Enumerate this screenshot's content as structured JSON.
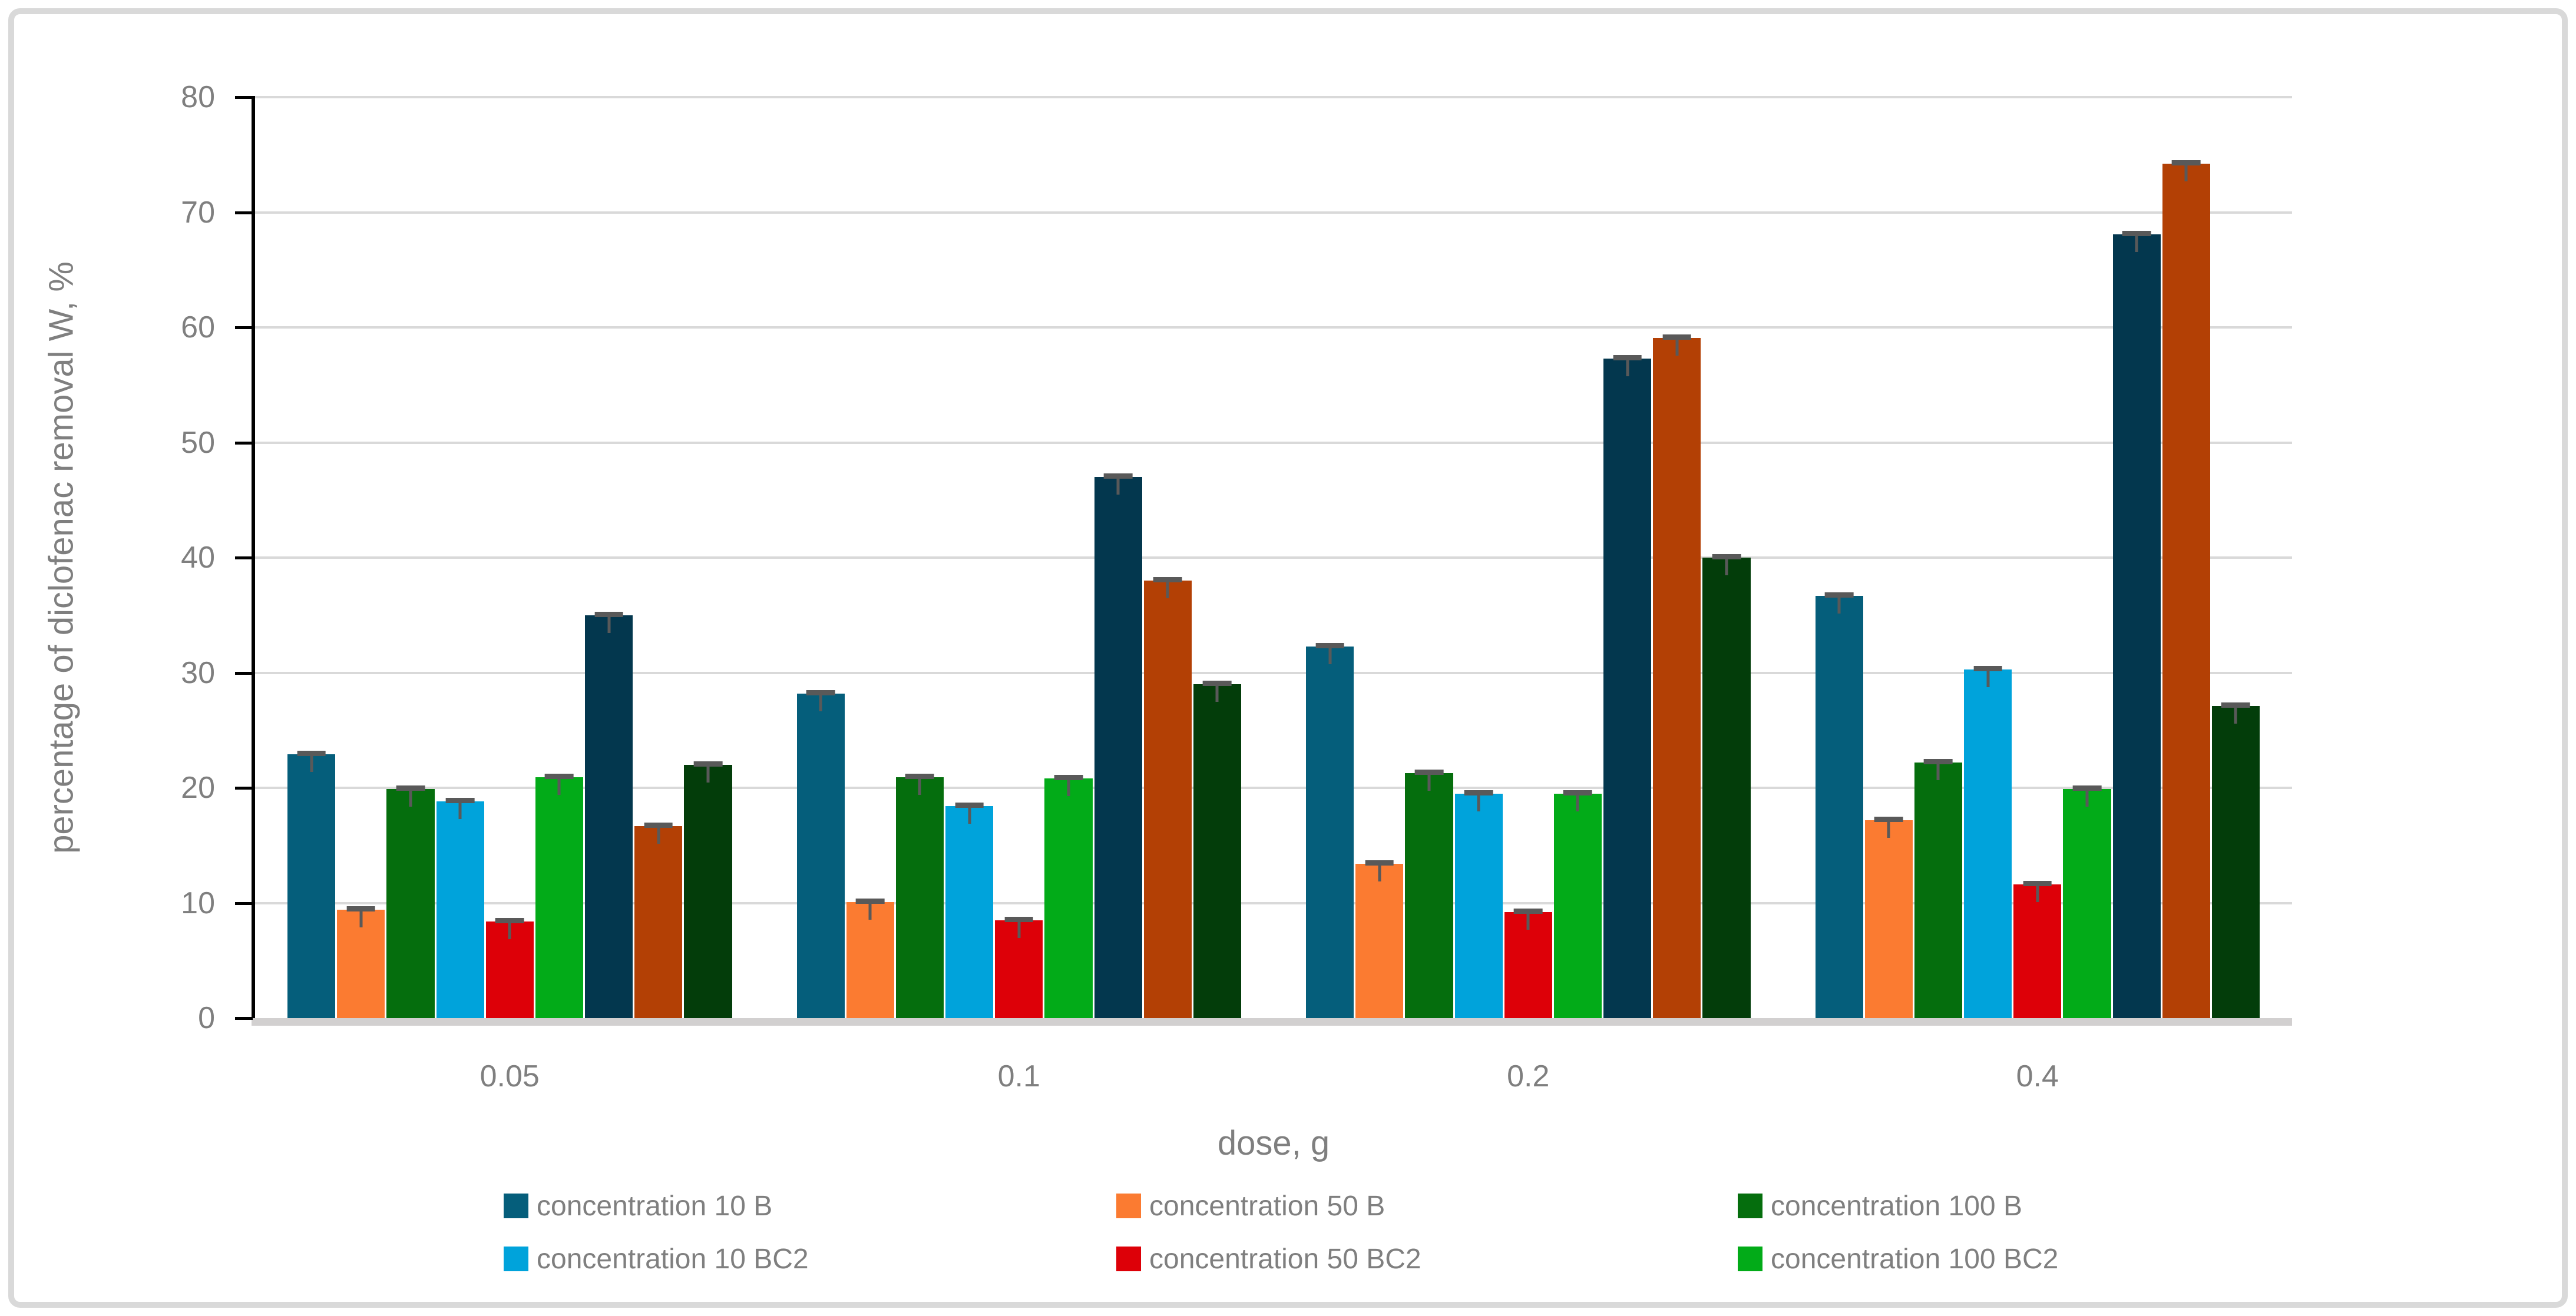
{
  "chart_data": {
    "type": "bar",
    "title": "",
    "xlabel": "dose, g",
    "ylabel": "percentage of diclofenac removal W, %",
    "ylim": [
      0,
      80
    ],
    "yticks": [
      0,
      10,
      20,
      30,
      40,
      50,
      60,
      70,
      80
    ],
    "grid": "horizontal",
    "legend_position": "bottom",
    "error_bars": true,
    "error_bar_approx": 0.4,
    "categories": [
      "0.05",
      "0.1",
      "0.2",
      "0.4"
    ],
    "series": [
      {
        "name": "concentration 10 B",
        "color": "#055E7B",
        "in_legend": true,
        "values": [
          22.9,
          28.2,
          32.3,
          36.7
        ]
      },
      {
        "name": "concentration 50 B",
        "color": "#FB7B31",
        "in_legend": true,
        "values": [
          9.4,
          10.1,
          13.4,
          17.2
        ]
      },
      {
        "name": "concentration 100 B",
        "color": "#056E0D",
        "in_legend": true,
        "values": [
          19.9,
          20.9,
          21.3,
          22.2
        ]
      },
      {
        "name": "concentration 10 BC2",
        "color": "#00A3DB",
        "in_legend": true,
        "values": [
          18.8,
          18.4,
          19.5,
          30.3
        ]
      },
      {
        "name": "concentration 50 BC2",
        "color": "#DD0008",
        "in_legend": true,
        "values": [
          8.4,
          8.5,
          9.2,
          11.6
        ]
      },
      {
        "name": "concentration 100 BC2",
        "color": "#02AB18",
        "in_legend": true,
        "values": [
          20.9,
          20.8,
          19.5,
          19.9
        ]
      },
      {
        "name": "",
        "color": "#03374E",
        "in_legend": false,
        "values": [
          35.0,
          47.0,
          57.3,
          68.1
        ]
      },
      {
        "name": "",
        "color": "#B34005",
        "in_legend": false,
        "values": [
          16.7,
          38.0,
          59.1,
          74.2
        ]
      },
      {
        "name": "",
        "color": "#033D0A",
        "in_legend": false,
        "values": [
          22.0,
          29.0,
          40.0,
          27.1
        ]
      }
    ],
    "colors": {
      "gridline": "#D9D9D9",
      "axis_line": "#000000",
      "baseline": "#D2D0D0",
      "tick_text": "#7F7F7F",
      "error_bar": "#595959",
      "figure_border": "#D9D9D9"
    }
  }
}
